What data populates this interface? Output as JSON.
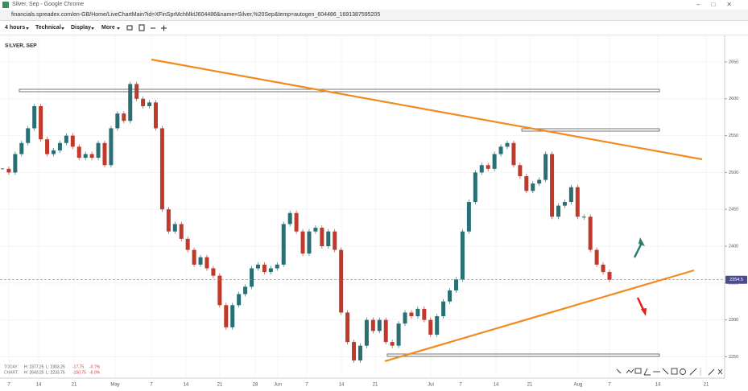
{
  "window": {
    "title": "Silver, Sep - Google Chrome",
    "url": "financials.spreadex.com/en-GB/Home/LiveChartMain?id=XFinSprMchMktJ604486&name=Silver,%20Sep&temp=autogen_604486_1691387595205"
  },
  "toolbar": {
    "items": [
      "4 hours",
      "Technical",
      "Display",
      "More"
    ]
  },
  "chart": {
    "instrument": "SILVER, SEP",
    "type": "candlestick",
    "ylim": [
      2221,
      2686
    ],
    "yticks": [
      2250,
      2300,
      2350,
      2400,
      2450,
      2500,
      2550,
      2600,
      2650
    ],
    "xlabels": [
      "7",
      "14",
      "21",
      "May",
      "7",
      "14",
      "21",
      "28",
      "Jun",
      "7",
      "14",
      "21",
      "Jul",
      "7",
      "14",
      "21",
      "Aug",
      "7",
      "14",
      "21"
    ],
    "prices": [
      2505,
      2500,
      2525,
      2540,
      2560,
      2590,
      2545,
      2525,
      2530,
      2540,
      2550,
      2535,
      2520,
      2525,
      2520,
      2540,
      2510,
      2560,
      2580,
      2570,
      2620,
      2600,
      2590,
      2595,
      2560,
      2450,
      2420,
      2430,
      2410,
      2395,
      2375,
      2385,
      2370,
      2360,
      2320,
      2290,
      2320,
      2335,
      2345,
      2370,
      2375,
      2365,
      2370,
      2375,
      2430,
      2445,
      2420,
      2390,
      2420,
      2425,
      2400,
      2420,
      2395,
      2310,
      2270,
      2245,
      2265,
      2300,
      2285,
      2300,
      2270,
      2265,
      2295,
      2310,
      2305,
      2315,
      2300,
      2280,
      2305,
      2325,
      2340,
      2355,
      2420,
      2460,
      2500,
      2510,
      2505,
      2525,
      2535,
      2540,
      2510,
      2495,
      2475,
      2485,
      2490,
      2525,
      2440,
      2455,
      2460,
      2480,
      2440,
      2440,
      2395,
      2375,
      2365,
      2354.5
    ],
    "last_price": 2354.5,
    "stats": {
      "today": {
        "label": "TODAY:",
        "high": "H: 2377.25",
        "low": "L: 2303.25",
        "change": "-17.75",
        "change_pct": "-0.7%"
      },
      "chart": {
        "label": "CHART:",
        "high": "H: 2643.25",
        "low": "L: 2233.75",
        "change": "-150.75",
        "change_pct": "-6.0%"
      }
    }
  }
}
